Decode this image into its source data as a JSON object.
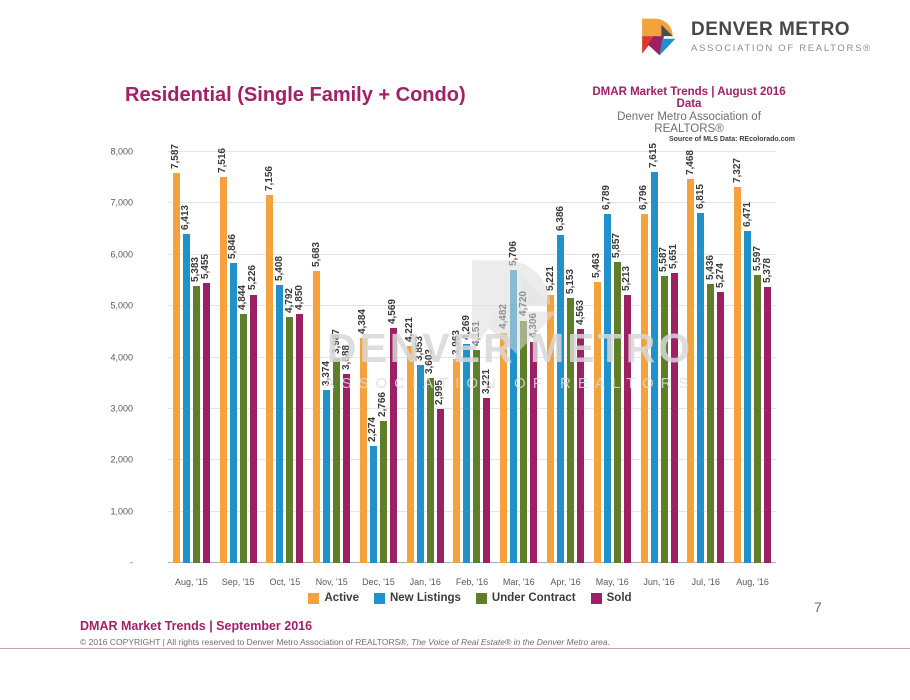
{
  "logo": {
    "line1": "DENVER METRO",
    "line2": "ASSOCIATION OF REALTORS®",
    "colors": {
      "orange": "#F2A33C",
      "red": "#D8392B",
      "magenta": "#9C2063",
      "blue": "#2191CC",
      "gray": "#4d4d4f"
    }
  },
  "header": {
    "title": "Residential (Single Family + Condo)",
    "meta_line1": "DMAR Market Trends | August 2016 Data",
    "meta_line2": "Denver Metro Association of REALTORS®",
    "meta_line3": "Source of MLS Data: REcolorado.com"
  },
  "chart_data": {
    "type": "bar",
    "title": "Residential (Single Family + Condo)",
    "categories": [
      "Aug, '15",
      "Sep, '15",
      "Oct, '15",
      "Nov, '15",
      "Dec, '15",
      "Jan, '16",
      "Feb, '16",
      "Mar, '16",
      "Apr, '16",
      "May, '16",
      "Jun, '16",
      "Jul, '16",
      "Aug, '16"
    ],
    "series": [
      {
        "name": "Active",
        "color": "#F5A23C",
        "values": [
          7587,
          7516,
          7156,
          5683,
          4384,
          4221,
          3963,
          4482,
          5221,
          5463,
          6796,
          7468,
          7327
        ]
      },
      {
        "name": "New Listings",
        "color": "#2191CC",
        "values": [
          6413,
          5846,
          5408,
          3374,
          2274,
          3853,
          4269,
          5706,
          6386,
          6789,
          7615,
          6815,
          6471
        ]
      },
      {
        "name": "Under Contract",
        "color": "#5E7E29",
        "values": [
          5383,
          4844,
          4792,
          3987,
          2766,
          3603,
          4151,
          4720,
          5153,
          5857,
          5587,
          5436,
          5597
        ]
      },
      {
        "name": "Sold",
        "color": "#9C2063",
        "values": [
          5455,
          5226,
          4850,
          3688,
          4569,
          2995,
          3221,
          4306,
          4563,
          5213,
          5651,
          5274,
          5378
        ]
      }
    ],
    "ylim": [
      0,
      8000
    ],
    "ytick_step": 1000,
    "ytick_labels": [
      "-",
      "1,000",
      "2,000",
      "3,000",
      "4,000",
      "5,000",
      "6,000",
      "7,000",
      "8,000"
    ],
    "grid": true,
    "legend_position": "bottom",
    "value_labels": "rotated-above-bars",
    "watermark": {
      "line1": "DENVER METRO",
      "line2": "ASSOCIATION OF REALTORS"
    }
  },
  "footer": {
    "left_bold": "DMAR Market Trends | September 2016",
    "copyright_plain": "© 2016 COPYRIGHT | All rights reserved to Denver Metro Association of REALTORS®, ",
    "copyright_italic": "The Voice of Real Estate® in the Denver Metro area.",
    "page_number": "7"
  }
}
